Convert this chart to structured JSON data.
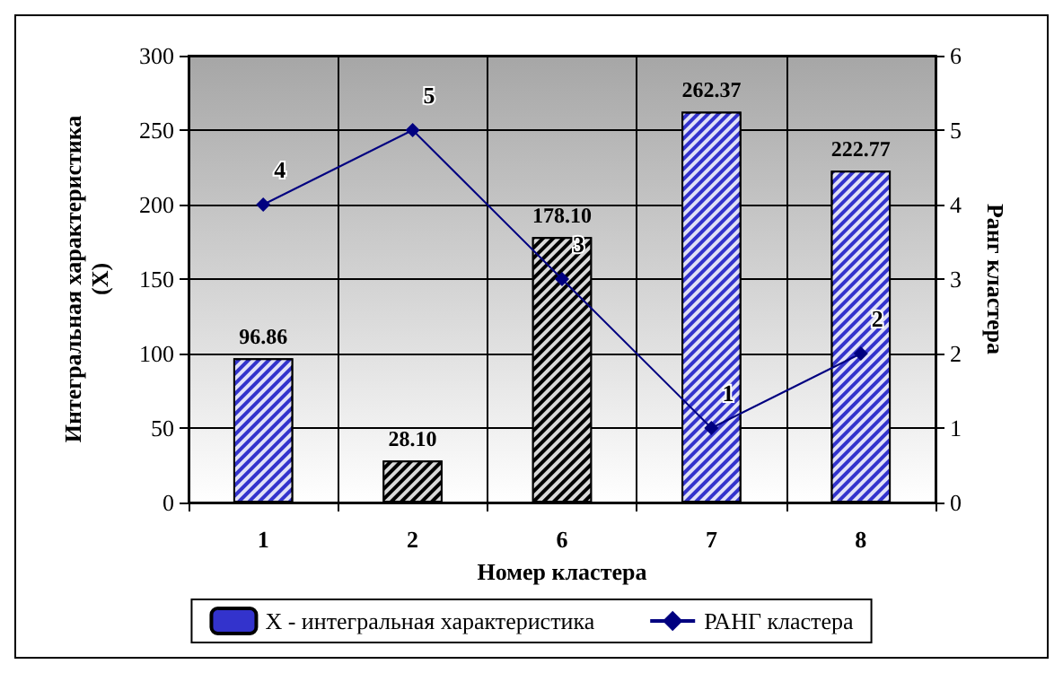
{
  "chart_data": {
    "type": "bar",
    "xlabel": "Номер кластера",
    "ylabel": "Интегральная характеристика (X)",
    "y2label": "Ранг кластера",
    "categories": [
      "1",
      "2",
      "6",
      "7",
      "8"
    ],
    "series": [
      {
        "name": "X - интегральная характеристика",
        "colors": [
          "#3333cc",
          "#000000",
          "#000000",
          "#3333cc",
          "#3333cc"
        ],
        "values": [
          96.86,
          28.1,
          178.1,
          262.37,
          222.77
        ],
        "value_labels": [
          "96.86",
          "28.10",
          "178.10",
          "262.37",
          "222.77"
        ]
      },
      {
        "name": "РАНГ кластера",
        "type": "line",
        "axis": "y2",
        "color": "#000080",
        "marker": "diamond",
        "values": [
          4,
          5,
          3,
          1,
          2
        ],
        "value_labels": [
          "4",
          "5",
          "3",
          "1",
          "2"
        ]
      }
    ],
    "ylim": [
      0,
      300
    ],
    "yticks": [
      0,
      50,
      100,
      150,
      200,
      250,
      300
    ],
    "y2lim": [
      0,
      6
    ],
    "y2ticks": [
      0,
      1,
      2,
      3,
      4,
      5,
      6
    ],
    "grid": true,
    "legend": "bottom"
  }
}
